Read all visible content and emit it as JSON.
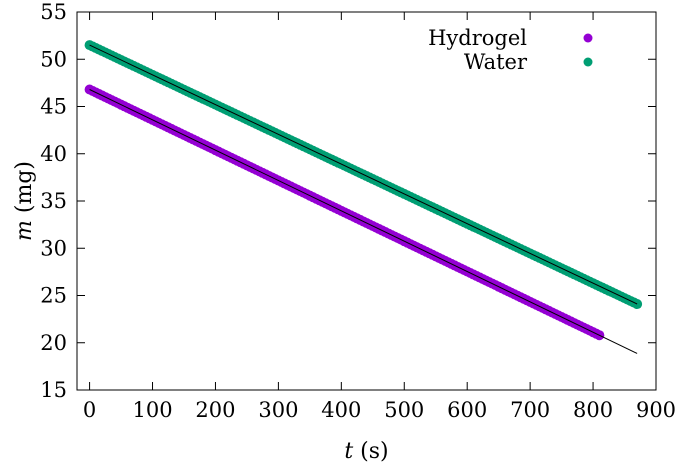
{
  "chart_data": {
    "type": "scatter",
    "title": "",
    "xlabel": {
      "var": "t",
      "unit": " (s)"
    },
    "ylabel": {
      "var": "m",
      "unit": " (mg)"
    },
    "xlim": [
      -20,
      900
    ],
    "ylim": [
      15,
      55
    ],
    "xticks": [
      0,
      100,
      200,
      300,
      400,
      500,
      600,
      700,
      800,
      900
    ],
    "yticks": [
      15,
      20,
      25,
      30,
      35,
      40,
      45,
      50,
      55
    ],
    "grid": false,
    "legend_position": "top-right",
    "series": [
      {
        "name": "Hydrogel",
        "color": "#9400d3",
        "marker": "circle",
        "x_start": 0,
        "x_end": 810,
        "x_step": 5,
        "y_start": 46.8,
        "slope": -0.0321
      },
      {
        "name": "Water",
        "color": "#009e73",
        "marker": "circle",
        "x_start": 0,
        "x_end": 870,
        "x_step": 5,
        "y_start": 51.5,
        "slope": -0.0315
      }
    ],
    "fit_lines": [
      {
        "series": "Hydrogel",
        "color": "#000000",
        "x": [
          0,
          870
        ],
        "y": [
          46.8,
          18.87
        ]
      },
      {
        "series": "Water",
        "color": "#000000",
        "x": [
          0,
          870
        ],
        "y": [
          51.5,
          24.1
        ]
      }
    ]
  }
}
